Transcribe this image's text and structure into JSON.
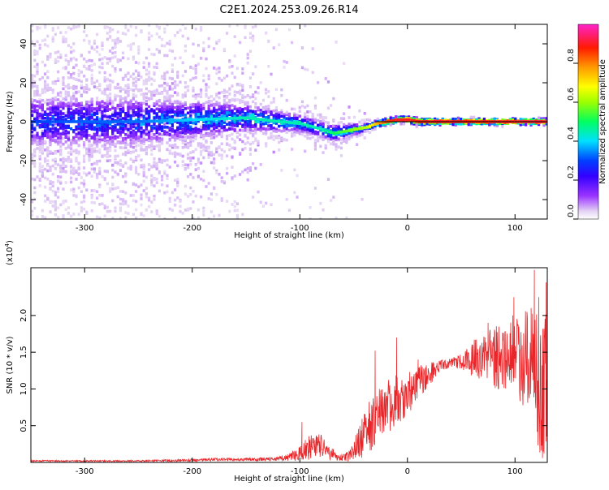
{
  "title": "C2E1.2024.253.09.26.R14",
  "colors": {
    "frame": "#000000",
    "snr_line": "#e8262a",
    "background": "#ffffff"
  },
  "chart_data": [
    {
      "type": "heatmap",
      "title": "C2E1.2024.253.09.26.R14",
      "xlabel": "Height of straight line (km)",
      "ylabel": "Frequency (Hz)",
      "xlim": [
        -350,
        130
      ],
      "ylim": [
        -50,
        50
      ],
      "x_ticks": [
        -300,
        -200,
        -100,
        0,
        100
      ],
      "y_ticks": [
        -40,
        -20,
        0,
        20,
        40
      ],
      "x_tick_labels": [
        "-300",
        "-200",
        "-100",
        "0",
        "100"
      ],
      "y_tick_labels": [
        "-40",
        "-20",
        "0",
        "20",
        "40"
      ],
      "colorbar": {
        "label": "Normalized spectral amplitude",
        "range": [
          0,
          1
        ],
        "ticks": [
          0.0,
          0.2,
          0.4,
          0.6,
          0.8
        ],
        "tick_labels": [
          "0.0",
          "0.2",
          "0.4",
          "0.6",
          "0.8"
        ],
        "colormap": "rainbow (white-lavender, purple, blue, cyan, green, yellow, red, magenta)"
      },
      "reference_line": {
        "y": 0,
        "x_from": -30,
        "x_to": 130,
        "color": "#000000"
      },
      "spectral_ridge": {
        "description": "dominant frequency vs height",
        "x": [
          -350,
          -300,
          -250,
          -200,
          -150,
          -120,
          -100,
          -80,
          -70,
          -60,
          -50,
          -40,
          -30,
          -20,
          -10,
          0,
          10,
          20,
          40,
          60,
          80,
          100,
          120,
          130
        ],
        "freq_hz": [
          0,
          0,
          0,
          1,
          2,
          0,
          -1,
          -4,
          -6,
          -5,
          -4,
          -3,
          -1,
          0,
          1,
          1,
          0,
          0,
          0,
          0,
          0,
          0,
          0,
          0
        ],
        "peak_amplitude": [
          0.3,
          0.32,
          0.33,
          0.4,
          0.45,
          0.45,
          0.45,
          0.45,
          0.5,
          0.55,
          0.6,
          0.62,
          0.75,
          0.85,
          0.9,
          0.9,
          0.88,
          0.9,
          0.9,
          0.88,
          0.9,
          0.9,
          0.92,
          0.9
        ],
        "spread_hz": [
          30,
          30,
          28,
          22,
          16,
          12,
          10,
          9,
          9,
          8,
          6,
          4,
          2.5,
          2,
          2,
          2,
          2,
          1.5,
          1.5,
          1.5,
          1.5,
          1.5,
          1.5,
          1.5
        ]
      }
    },
    {
      "type": "line",
      "xlabel": "Height of straight line (km)",
      "ylabel": "SNR (10 * v/v)",
      "y_multiplier": "(x10",
      "y_multiplier_exp": "4",
      "y_multiplier_close": ")",
      "xlim": [
        -350,
        130
      ],
      "ylim": [
        0,
        2.65
      ],
      "x_ticks": [
        -300,
        -200,
        -100,
        0,
        100
      ],
      "y_ticks": [
        0.5,
        1.0,
        1.5,
        2.0
      ],
      "x_tick_labels": [
        "-300",
        "-200",
        "-100",
        "0",
        "100"
      ],
      "y_tick_labels": [
        "0.5",
        "1.0",
        "1.5",
        "2.0"
      ],
      "series": [
        {
          "color": "#e8262a",
          "envelope": {
            "x": [
              -350,
              -300,
              -250,
              -200,
              -180,
              -150,
              -120,
              -110,
              -100,
              -95,
              -90,
              -85,
              -80,
              -75,
              -70,
              -65,
              -60,
              -55,
              -50,
              -45,
              -40,
              -35,
              -30,
              -25,
              -20,
              -15,
              -10,
              -5,
              0,
              10,
              20,
              30,
              40,
              50,
              60,
              70,
              80,
              90,
              100,
              110,
              115,
              120,
              125,
              130
            ],
            "base": [
              0.02,
              0.02,
              0.02,
              0.03,
              0.04,
              0.04,
              0.05,
              0.07,
              0.12,
              0.18,
              0.2,
              0.22,
              0.22,
              0.18,
              0.12,
              0.08,
              0.06,
              0.08,
              0.15,
              0.25,
              0.38,
              0.5,
              0.6,
              0.7,
              0.75,
              0.8,
              0.85,
              0.85,
              0.9,
              1.1,
              1.2,
              1.3,
              1.35,
              1.38,
              1.4,
              1.42,
              1.45,
              1.45,
              1.4,
              1.45,
              1.4,
              1.2,
              0.9,
              1.2
            ],
            "noise": [
              0.01,
              0.01,
              0.01,
              0.02,
              0.02,
              0.02,
              0.03,
              0.05,
              0.1,
              0.15,
              0.17,
              0.18,
              0.18,
              0.15,
              0.1,
              0.06,
              0.05,
              0.08,
              0.15,
              0.25,
              0.3,
              0.35,
              0.4,
              0.4,
              0.4,
              0.38,
              0.35,
              0.3,
              0.3,
              0.25,
              0.15,
              0.1,
              0.08,
              0.1,
              0.25,
              0.35,
              0.45,
              0.5,
              0.55,
              0.7,
              0.8,
              0.9,
              0.9,
              0.9
            ]
          },
          "spikes": [
            {
              "x": -98,
              "y": 0.55
            },
            {
              "x": -30,
              "y": 1.52
            },
            {
              "x": -10,
              "y": 1.7
            },
            {
              "x": 10,
              "y": 1.4
            },
            {
              "x": 75,
              "y": 1.9
            },
            {
              "x": 98,
              "y": 2.0
            },
            {
              "x": 99,
              "y": 2.25
            },
            {
              "x": 115,
              "y": 2.1
            },
            {
              "x": 118,
              "y": 2.62
            },
            {
              "x": 122,
              "y": 2.25
            },
            {
              "x": 127,
              "y": 0.12
            },
            {
              "x": 129,
              "y": 2.45
            }
          ]
        }
      ]
    }
  ]
}
